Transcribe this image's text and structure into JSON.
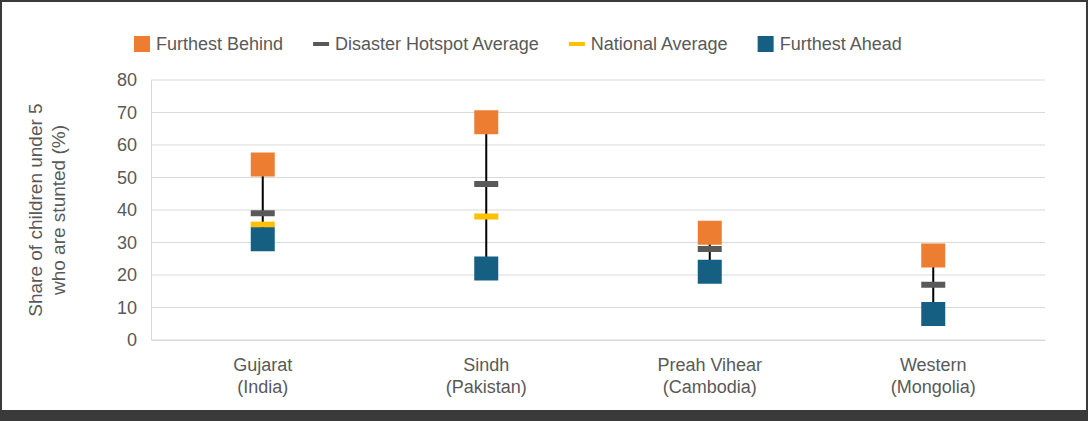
{
  "chart_data": {
    "type": "scatter",
    "y_label": "Share of children under 5 who are stunted (%)",
    "categories": [
      "Gujarat (India)",
      "Sindh (Pakistan)",
      "Preah Vihear (Cambodia)",
      "Western (Mongolia)"
    ],
    "series": [
      {
        "name": "Furthest Behind",
        "color": "#ED7D31",
        "marker": "square",
        "values": [
          54,
          67,
          33,
          26
        ]
      },
      {
        "name": "Disaster Hotspot Average",
        "color": "#595959",
        "marker": "dash",
        "values": [
          39,
          48,
          28,
          17
        ]
      },
      {
        "name": "National Average",
        "color": "#FFC000",
        "marker": "dash",
        "values": [
          35.5,
          38,
          null,
          null
        ]
      },
      {
        "name": "Furthest Ahead",
        "color": "#156082",
        "marker": "square",
        "values": [
          31,
          22,
          21,
          8
        ]
      }
    ],
    "ylim": [
      0,
      80
    ],
    "yticks": [
      0,
      10,
      20,
      30,
      40,
      50,
      60,
      70,
      80
    ],
    "grid": true,
    "legend": "top"
  }
}
